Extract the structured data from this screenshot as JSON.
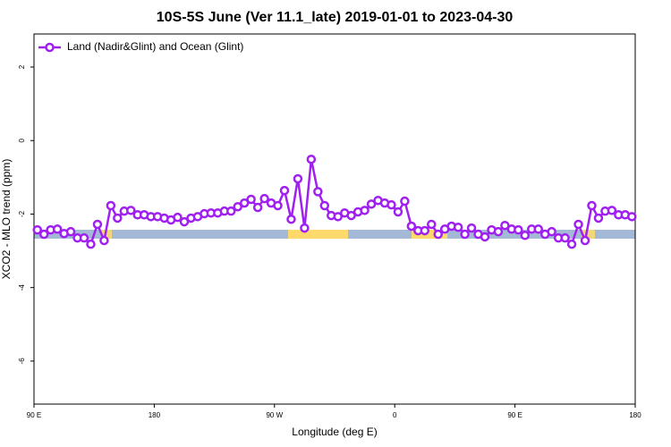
{
  "chart_data": {
    "type": "line",
    "title": "10S-5S June (Ver 11.1_late)   2019-01-01 to 2023-04-30",
    "x_label": "Longitude (deg E)",
    "y_label": "XCO2 - MLO trend (ppm)",
    "x": [
      92.5,
      97.5,
      102.5,
      107.5,
      112.5,
      117.5,
      122.5,
      127.5,
      132.5,
      137.5,
      142.5,
      147.5,
      152.5,
      157.5,
      162.5,
      167.5,
      172.5,
      177.5,
      182.5,
      187.5,
      192.5,
      197.5,
      202.5,
      207.5,
      212.5,
      217.5,
      222.5,
      227.5,
      232.5,
      237.5,
      242.5,
      247.5,
      252.5,
      257.5,
      262.5,
      267.5,
      272.5,
      277.5,
      282.5,
      287.5,
      292.5,
      297.5,
      302.5,
      307.5,
      312.5,
      317.5,
      322.5,
      327.5,
      332.5,
      337.5,
      342.5,
      347.5,
      352.5,
      357.5,
      362.5,
      367.5,
      372.5,
      377.5,
      382.5,
      387.5,
      392.5,
      397.5,
      402.5,
      407.5,
      412.5,
      417.5,
      422.5,
      427.5,
      432.5,
      437.5,
      442.5,
      447.5,
      452.5,
      457.5,
      462.5,
      467.5,
      472.5,
      477.5,
      482.5,
      487.5,
      492.5,
      497.5,
      502.5,
      507.5,
      512.5,
      517.5,
      522.5,
      527.5,
      532.5,
      537.5
    ],
    "series": [
      {
        "name": "Land (Nadir&Glint) and Ocean (Glint)",
        "color": "#a020f0",
        "values": [
          -2.43,
          -2.55,
          -2.43,
          -2.41,
          -2.53,
          -2.48,
          -2.65,
          -2.65,
          -2.82,
          -2.28,
          -2.72,
          -1.77,
          -2.11,
          -1.92,
          -1.9,
          -2.02,
          -2.02,
          -2.07,
          -2.07,
          -2.11,
          -2.16,
          -2.09,
          -2.21,
          -2.11,
          -2.07,
          -1.99,
          -1.97,
          -1.97,
          -1.92,
          -1.92,
          -1.8,
          -1.7,
          -1.6,
          -1.82,
          -1.58,
          -1.7,
          -1.77,
          -1.36,
          -2.14,
          -1.04,
          -2.38,
          -0.51,
          -1.39,
          -1.77,
          -2.04,
          -2.07,
          -1.97,
          -2.04,
          -1.94,
          -1.9,
          -1.73,
          -1.63,
          -1.7,
          -1.75,
          -1.94,
          -1.65,
          -2.33,
          -2.45,
          -2.45,
          -2.28,
          -2.55,
          -2.41,
          -2.33,
          -2.36,
          -2.55,
          -2.38,
          -2.55,
          -2.62,
          -2.43,
          -2.48,
          -2.31,
          -2.41,
          -2.43,
          -2.58,
          -2.41,
          -2.41,
          -2.55,
          -2.48,
          -2.65,
          -2.65,
          -2.82,
          -2.28,
          -2.72,
          -1.77,
          -2.11,
          -1.92,
          -1.9,
          -2.02,
          -2.02,
          -2.07
        ]
      }
    ],
    "xlim": [
      90,
      540
    ],
    "xticks": [
      {
        "value": 90,
        "label": "90 E"
      },
      {
        "value": 180,
        "label": "180"
      },
      {
        "value": 270,
        "label": "90 W"
      },
      {
        "value": 360,
        "label": "0"
      },
      {
        "value": 450,
        "label": "90 E"
      },
      {
        "value": 540,
        "label": "180"
      }
    ],
    "ylim": [
      -7.17,
      2.9
    ],
    "yticks": [
      -6,
      -4,
      -2,
      0,
      2
    ],
    "legend": "top-left"
  }
}
